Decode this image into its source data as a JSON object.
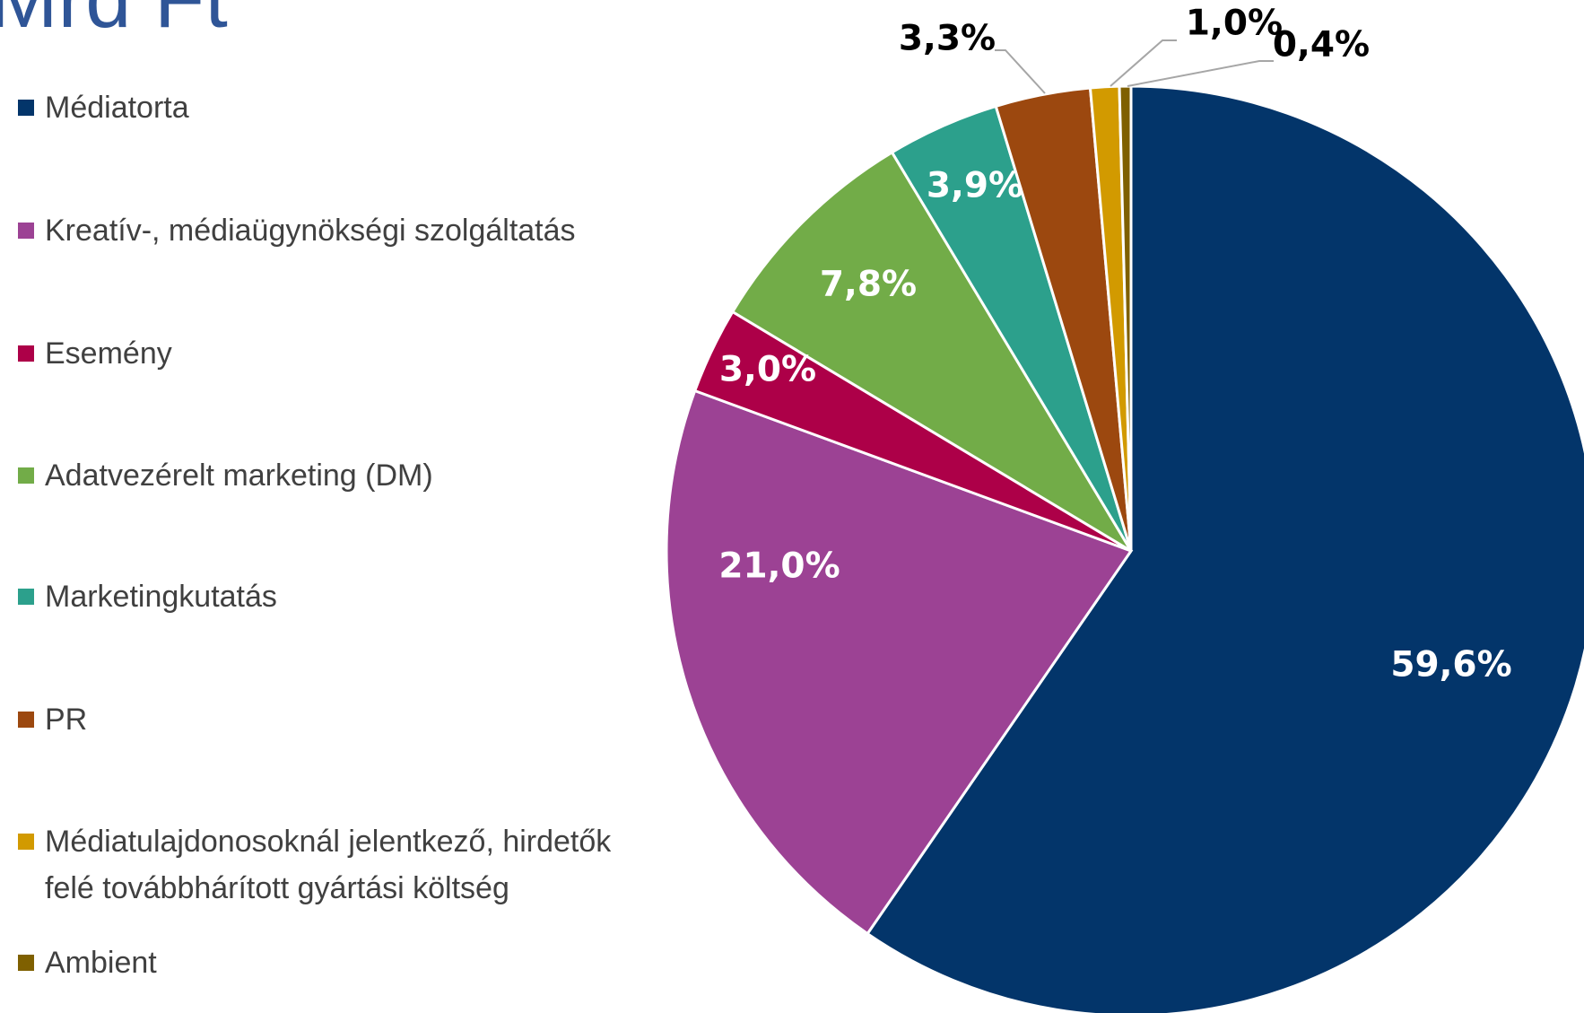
{
  "chart_data": {
    "type": "pie",
    "title": "Mrd Ft",
    "categories": [
      "Médiatorta",
      "Kreatív-, médiaügynökségi szolgáltatás",
      "Esemény",
      "Adatvezérelt marketing (DM)",
      "Marketingkutatás",
      "PR",
      "Médiatulajdonosoknál jelentkező, hirdetők felé továbbhárított gyártási költség",
      "Ambient"
    ],
    "values": [
      59.6,
      21.0,
      3.0,
      7.8,
      3.9,
      3.3,
      1.0,
      0.4
    ],
    "value_labels": [
      "59,6%",
      "21,0%",
      "3,0%",
      "7,8%",
      "3,9%",
      "3,3%",
      "1,0%",
      "0,4%"
    ],
    "colors": [
      "#03356a",
      "#9c4294",
      "#ad0048",
      "#72ac48",
      "#2ca08c",
      "#9c480f",
      "#d29a00",
      "#7f6000"
    ],
    "legend": "left"
  }
}
